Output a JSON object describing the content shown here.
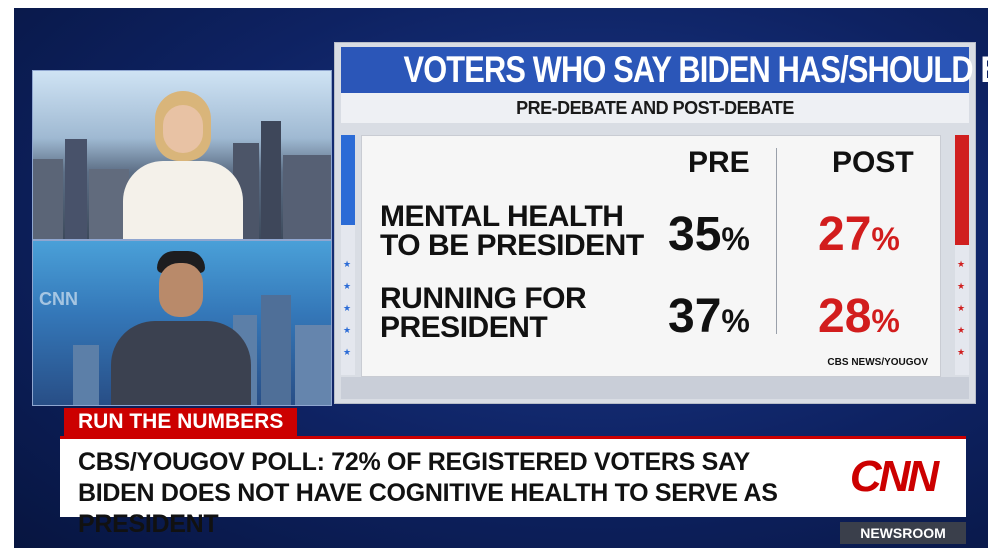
{
  "board": {
    "title": "VOTERS WHO SAY BIDEN HAS/SHOULD BE",
    "subtitle": "PRE-DEBATE AND POST-DEBATE",
    "col_pre": "PRE",
    "col_post": "POST",
    "rows": [
      {
        "label": "MENTAL HEALTH TO BE PRESIDENT",
        "pre": "35",
        "post": "27"
      },
      {
        "label": "RUNNING FOR PRESIDENT",
        "pre": "37",
        "post": "28"
      }
    ],
    "pct_sign": "%",
    "source": "CBS NEWS/YOUGOV"
  },
  "lower_third": {
    "tag": "RUN THE NUMBERS",
    "headline": "CBS/YOUGOV POLL: 72% OF REGISTERED VOTERS SAY BIDEN DOES NOT HAVE COGNITIVE HEALTH TO SERVE AS PRESIDENT",
    "logo": "CNN"
  },
  "show": {
    "name": "NEWSROOM",
    "studio_wall": "CNN"
  },
  "colors": {
    "title_blue": "#2b56b8",
    "accent_red": "#cc0000",
    "post_red": "#d21d1d"
  }
}
